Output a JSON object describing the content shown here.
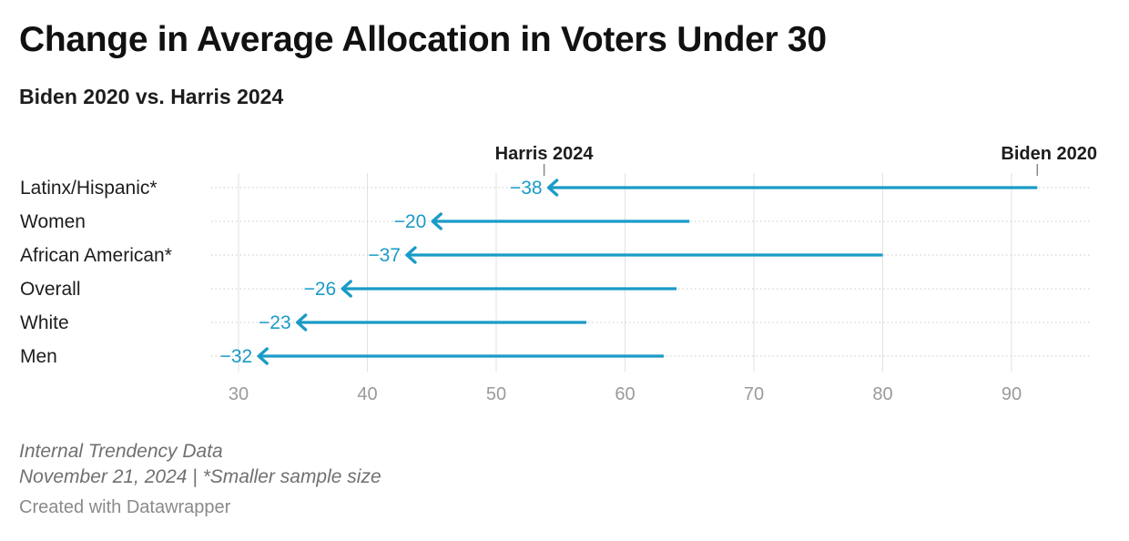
{
  "header": {
    "title": "Change in Average Allocation in Voters Under 30",
    "subtitle": "Biden 2020 vs. Harris 2024"
  },
  "footer": {
    "source_line1": "Internal Trendency Data",
    "source_line2": "November 21, 2024 | *Smaller sample size",
    "credit": "Created with Datawrapper"
  },
  "chart_data": {
    "type": "arrow",
    "title": "Change in Average Allocation in Voters Under 30",
    "subtitle": "Biden 2020 vs. Harris 2024",
    "xlim": [
      30,
      95
    ],
    "xticks": [
      30,
      40,
      50,
      60,
      70,
      80,
      90
    ],
    "grid": true,
    "series": [
      {
        "name": "Biden 2020",
        "role": "start"
      },
      {
        "name": "Harris 2024",
        "role": "end"
      }
    ],
    "rows": [
      {
        "label": "Latinx/Hispanic*",
        "start": 92,
        "end": 54,
        "change": "−38"
      },
      {
        "label": "Women",
        "start": 65,
        "end": 45,
        "change": "−20"
      },
      {
        "label": "African American*",
        "start": 80,
        "end": 43,
        "change": "−37"
      },
      {
        "label": "Overall",
        "start": 64,
        "end": 38,
        "change": "−26"
      },
      {
        "label": "White",
        "start": 57,
        "end": 34.5,
        "change": "−23"
      },
      {
        "label": "Men",
        "start": 63,
        "end": 31.5,
        "change": "−32"
      }
    ],
    "colors": {
      "arrow": "#1a9bc7",
      "label": "#1a9bc7",
      "grid": "#e2e2e2",
      "tick": "#9a9a9a"
    }
  }
}
